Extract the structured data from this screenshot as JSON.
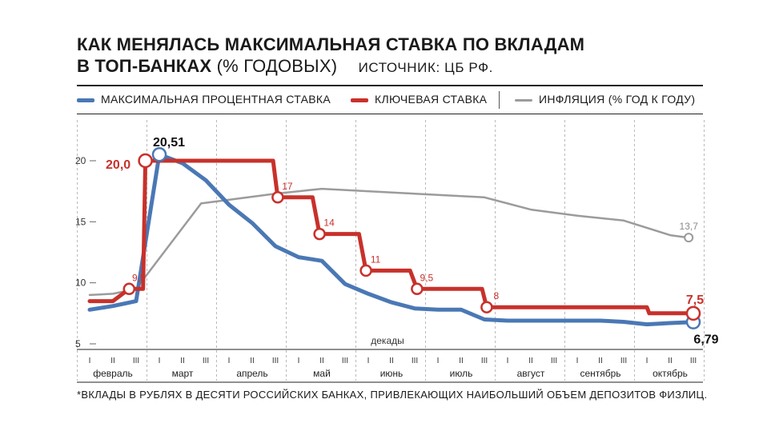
{
  "header": {
    "title_line1": "КАК МЕНЯЛАСЬ МАКСИМАЛЬНАЯ СТАВКА ПО ВКЛАДАМ",
    "title_line2_bold": "В ТОП-БАНКАХ",
    "title_line2_thin": "(% ГОДОВЫХ)",
    "source": "ИСТОЧНИК: ЦБ РФ."
  },
  "legend": {
    "items": [
      {
        "label": "МАКСИМАЛЬНАЯ ПРОЦЕНТНАЯ СТАВКА",
        "color": "#4a78b5"
      },
      {
        "label": "КЛЮЧЕВАЯ СТАВКА",
        "color": "#c8312b"
      },
      {
        "label": "ИНФЛЯЦИЯ (% ГОД К ГОДУ)",
        "color": "#9b9b9b"
      }
    ]
  },
  "footnote": "*ВКЛАДЫ В РУБЛЯХ В ДЕСЯТИ РОССИЙСКИХ БАНКАХ, ПРИВЛЕКАЮЩИХ НАИБОЛЬШИЙ ОБЪЕМ ДЕПОЗИТОВ ФИЗЛИЦ.",
  "chart_data": {
    "type": "line",
    "xlabel": "декады",
    "ylim": [
      5,
      21
    ],
    "yticks": [
      "5",
      "10",
      "15",
      "20"
    ],
    "grid": "vertical, dashed, at month boundaries",
    "x_unit": "decade index (1 = I декада февраля … 27 = III декада октября)",
    "months": [
      "февраль",
      "март",
      "апрель",
      "май",
      "июнь",
      "июль",
      "август",
      "сентябрь",
      "октябрь"
    ],
    "decade_labels": [
      "I",
      "II",
      "III"
    ],
    "series": [
      {
        "name": "МАКСИМАЛЬНАЯ ПРОЦЕНТНАЯ СТАВКА",
        "color": "#4a78b5",
        "width": 5,
        "x": [
          1,
          2,
          3,
          4,
          5,
          6,
          7,
          8,
          9,
          10,
          11,
          12,
          13,
          14,
          15,
          16,
          17,
          18,
          19,
          20,
          21,
          22,
          23,
          24,
          25,
          26,
          27
        ],
        "y": [
          7.8,
          8.1,
          8.5,
          20.51,
          19.8,
          18.4,
          16.4,
          14.9,
          13.0,
          12.1,
          11.8,
          9.9,
          9.1,
          8.4,
          7.9,
          7.8,
          7.8,
          7.0,
          6.9,
          6.9,
          6.9,
          6.9,
          6.9,
          6.8,
          6.6,
          6.7,
          6.79
        ],
        "markers": [
          {
            "x": 4,
            "label": "20,51"
          },
          {
            "x": 27,
            "label": "6,79"
          }
        ]
      },
      {
        "name": "КЛЮЧЕВАЯ СТАВКА",
        "color": "#c8312b",
        "width": 5,
        "points": [
          [
            1,
            8.5
          ],
          [
            2,
            8.5
          ],
          [
            2.7,
            9.5
          ],
          [
            3.3,
            9.5
          ],
          [
            3.4,
            20.0
          ],
          [
            8.9,
            20.0
          ],
          [
            9.1,
            17.0
          ],
          [
            10.6,
            17.0
          ],
          [
            10.9,
            14.0
          ],
          [
            12.6,
            14.0
          ],
          [
            12.9,
            11.0
          ],
          [
            14.8,
            11.0
          ],
          [
            15.1,
            9.5
          ],
          [
            17.9,
            9.5
          ],
          [
            18.1,
            8.0
          ],
          [
            25.0,
            8.0
          ],
          [
            25.1,
            7.5
          ],
          [
            27.0,
            7.5
          ]
        ],
        "markers": [
          {
            "x": 2.7,
            "y": 9.5,
            "label": "9,5"
          },
          {
            "x": 3.4,
            "y": 20.0,
            "label": "20,0"
          },
          {
            "x": 9.1,
            "y": 17.0,
            "label": "17"
          },
          {
            "x": 10.9,
            "y": 14.0,
            "label": "14"
          },
          {
            "x": 12.9,
            "y": 11.0,
            "label": "11"
          },
          {
            "x": 15.1,
            "y": 9.5,
            "label": "9,5"
          },
          {
            "x": 18.1,
            "y": 8.0,
            "label": "8"
          },
          {
            "x": 27.0,
            "y": 7.5,
            "label": "7,5"
          }
        ]
      },
      {
        "name": "ИНФЛЯЦИЯ (% ГОД К ГОДУ)",
        "color": "#9b9b9b",
        "width": 2.5,
        "points": [
          [
            1,
            9.0
          ],
          [
            2,
            9.1
          ],
          [
            3,
            9.5
          ],
          [
            5.8,
            16.5
          ],
          [
            9,
            17.3
          ],
          [
            11,
            17.7
          ],
          [
            15,
            17.3
          ],
          [
            18,
            17.0
          ],
          [
            20,
            16.0
          ],
          [
            22,
            15.5
          ],
          [
            24,
            15.1
          ],
          [
            26,
            13.9
          ],
          [
            26.8,
            13.7
          ]
        ],
        "markers": [
          {
            "x": 26.8,
            "y": 13.7,
            "label": "13,7"
          }
        ]
      }
    ]
  }
}
